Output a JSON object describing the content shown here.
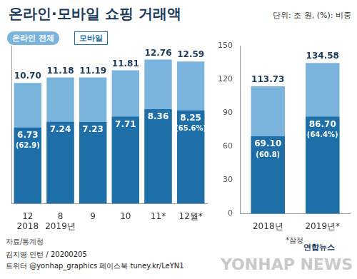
{
  "title": "온라인·모바일 쇼핑 거래액",
  "subtitle": "단위: 조 원, (%): 비중",
  "source": "자료/통계청",
  "note": "*잠정",
  "credit": "김지영 인턴 / 20200205",
  "social": "트위터 @yonhap_graphics  페이스북 tuney.kr/LeYN1",
  "logo": "연합뉴스",
  "watermark": "YONHAP NEWS",
  "chart_data": [
    {
      "type": "bar",
      "categories": [
        "12",
        "8",
        "9",
        "10",
        "11*",
        "12월*"
      ],
      "x_groups": [
        {
          "label": "2018",
          "count": 1
        },
        {
          "label": "2019년",
          "count": 5
        }
      ],
      "series": [
        {
          "name": "온라인 전체",
          "color": "#7ab4dc",
          "values": [
            10.7,
            11.18,
            11.19,
            11.81,
            12.76,
            12.59
          ],
          "value_labels": [
            "10.70",
            "11.18",
            "11.19",
            "11.81",
            "12.76",
            "12.59"
          ]
        },
        {
          "name": "모바일",
          "color": "#1e6ea7",
          "values": [
            6.73,
            7.24,
            7.23,
            7.71,
            8.36,
            8.25
          ],
          "value_labels": [
            "6.73",
            "7.24",
            "7.23",
            "7.71",
            "8.36",
            "8.25"
          ],
          "shares": [
            62.9,
            null,
            null,
            null,
            null,
            65.6
          ],
          "share_labels": [
            "(62.9)",
            null,
            null,
            null,
            null,
            "(65.6%)"
          ]
        }
      ],
      "ylim": [
        0,
        14
      ],
      "tick_labels": "x",
      "grid": false,
      "data_labels": true
    },
    {
      "type": "bar",
      "categories": [
        "2018년",
        "2019년*"
      ],
      "series": [
        {
          "color": "#7ab4dc",
          "values": [
            113.73,
            134.58
          ],
          "value_labels": [
            "113.73",
            "134.58"
          ]
        },
        {
          "color": "#1e6ea7",
          "values": [
            69.1,
            86.7
          ],
          "value_labels": [
            "69.10",
            "86.70"
          ],
          "shares": [
            60.8,
            64.4
          ],
          "share_labels": [
            "(60.8)",
            "(64.4%)"
          ]
        }
      ],
      "ylim": [
        0,
        150
      ],
      "yticks": [
        0,
        30,
        60,
        90,
        120,
        150
      ],
      "grid": false,
      "data_labels": true
    }
  ]
}
